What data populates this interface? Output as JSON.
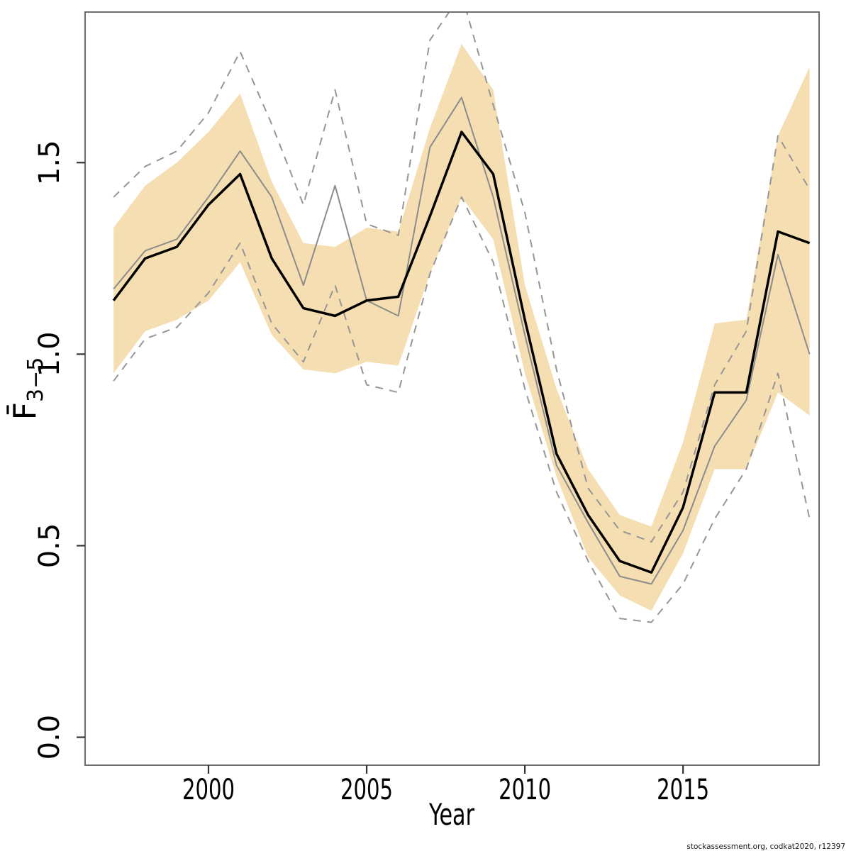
{
  "page": {
    "background": "#ffffff"
  },
  "footer": {
    "text": "stockassessment.org, codkat2020, r12397"
  },
  "colors": {
    "band": "#f5deb1",
    "estimate_line": "#000000",
    "comparison_line": "#8c8c8c",
    "ci_dashed_line": "#969696",
    "plot_border": "#6e6e6e",
    "tick": "#333333",
    "text": "#000000"
  },
  "chart_data": {
    "type": "line",
    "title": "",
    "xlabel": "Year",
    "ylabel_main": "F̄",
    "ylabel_sub": "3−5",
    "grid": false,
    "legend": "none",
    "xlim": [
      1996.1,
      2019.3
    ],
    "ylim": [
      -0.073,
      1.893
    ],
    "x_ticks": [
      {
        "value": 2000,
        "label": "2000"
      },
      {
        "value": 2005,
        "label": "2005"
      },
      {
        "value": 2010,
        "label": "2010"
      },
      {
        "value": 2015,
        "label": "2015"
      }
    ],
    "y_ticks": [
      {
        "value": 0.0,
        "label": "0.0"
      },
      {
        "value": 0.5,
        "label": "0.5"
      },
      {
        "value": 1.0,
        "label": "1.0"
      },
      {
        "value": 1.5,
        "label": "1.5"
      }
    ],
    "x": [
      1997,
      1998,
      1999,
      2000,
      2001,
      2002,
      2003,
      2004,
      2005,
      2006,
      2007,
      2008,
      2009,
      2010,
      2011,
      2012,
      2013,
      2014,
      2015,
      2016,
      2017,
      2018,
      2019
    ],
    "band": {
      "name": "confidence-band-current-assessment",
      "color": "#f5deb1",
      "upper": [
        1.33,
        1.44,
        1.5,
        1.58,
        1.68,
        1.45,
        1.29,
        1.28,
        1.33,
        1.32,
        1.59,
        1.81,
        1.69,
        1.18,
        0.91,
        0.7,
        0.58,
        0.55,
        0.77,
        1.08,
        1.09,
        1.57,
        1.75
      ],
      "lower": [
        0.95,
        1.06,
        1.09,
        1.14,
        1.24,
        1.05,
        0.96,
        0.95,
        0.98,
        0.97,
        1.21,
        1.41,
        1.3,
        0.95,
        0.68,
        0.47,
        0.37,
        0.33,
        0.48,
        0.7,
        0.7,
        0.9,
        0.84
      ]
    },
    "series": [
      {
        "name": "ci-lower-comparison-run",
        "style": "dashed",
        "color": "#969696",
        "width": 2,
        "dash": "11 9",
        "values": [
          0.93,
          1.04,
          1.07,
          1.16,
          1.29,
          1.08,
          0.98,
          1.18,
          0.92,
          0.9,
          1.21,
          1.41,
          1.24,
          0.91,
          0.64,
          0.46,
          0.31,
          0.3,
          0.4,
          0.57,
          0.7,
          0.95,
          0.57
        ]
      },
      {
        "name": "ci-upper-comparison-run",
        "style": "dashed",
        "color": "#969696",
        "width": 2,
        "dash": "11 9",
        "values": [
          1.41,
          1.49,
          1.53,
          1.63,
          1.79,
          1.6,
          1.39,
          1.69,
          1.34,
          1.31,
          1.82,
          1.94,
          1.65,
          1.37,
          0.96,
          0.65,
          0.54,
          0.51,
          0.64,
          0.92,
          1.06,
          1.57,
          1.43
        ]
      },
      {
        "name": "comparison-run-estimate",
        "style": "solid",
        "color": "#8c8c8c",
        "width": 2,
        "dash": null,
        "values": [
          1.17,
          1.27,
          1.3,
          1.41,
          1.53,
          1.41,
          1.18,
          1.44,
          1.14,
          1.1,
          1.54,
          1.67,
          1.41,
          1.05,
          0.71,
          0.56,
          0.42,
          0.4,
          0.54,
          0.76,
          0.88,
          1.26,
          1.0
        ]
      },
      {
        "name": "current-assessment-estimate",
        "style": "solid",
        "color": "#000000",
        "width": 3.5,
        "dash": null,
        "values": [
          1.14,
          1.25,
          1.28,
          1.39,
          1.47,
          1.25,
          1.12,
          1.1,
          1.14,
          1.15,
          1.36,
          1.58,
          1.47,
          1.09,
          0.74,
          0.58,
          0.46,
          0.43,
          0.6,
          0.9,
          0.9,
          1.32,
          1.29
        ]
      }
    ]
  }
}
